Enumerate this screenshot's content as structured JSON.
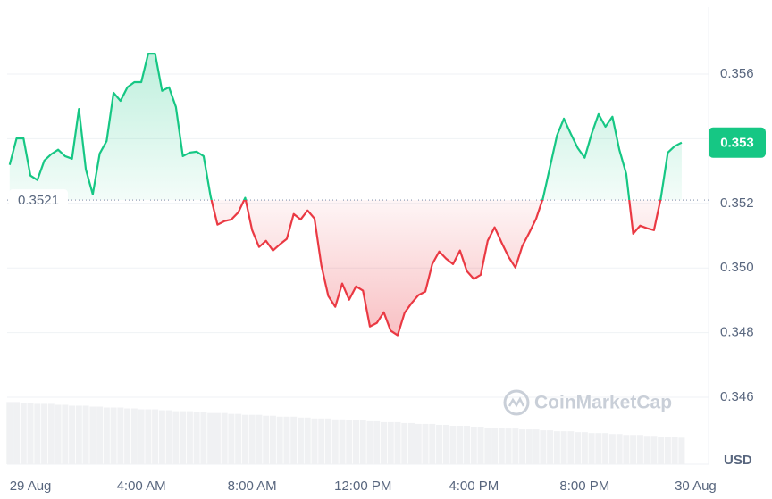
{
  "chart_data": {
    "type": "line",
    "x": [
      -0.75,
      -0.5,
      -0.25,
      0,
      0.25,
      0.5,
      0.75,
      1,
      1.25,
      1.5,
      1.75,
      2,
      2.25,
      2.5,
      2.75,
      3,
      3.25,
      3.5,
      3.75,
      4,
      4.25,
      4.5,
      4.75,
      5,
      5.25,
      5.5,
      5.75,
      6,
      6.25,
      6.5,
      6.75,
      7,
      7.25,
      7.5,
      7.75,
      8,
      8.25,
      8.5,
      8.75,
      9,
      9.25,
      9.5,
      9.75,
      10,
      10.25,
      10.5,
      10.75,
      11,
      11.25,
      11.5,
      11.75,
      12,
      12.25,
      12.5,
      12.75,
      13,
      13.25,
      13.5,
      13.75,
      14,
      14.25,
      14.5,
      14.75,
      15,
      15.25,
      15.5,
      15.75,
      16,
      16.25,
      16.5,
      16.75,
      17,
      17.25,
      17.5,
      17.75,
      18,
      18.25,
      18.5,
      18.75,
      19,
      19.25,
      19.5,
      19.75,
      20,
      20.25,
      20.5,
      20.75,
      21,
      21.25,
      21.5,
      21.75,
      22,
      22.25,
      22.5,
      22.75,
      23,
      23.25,
      23.5
    ],
    "series": [
      {
        "name": "price",
        "values": [
          0.35319,
          0.35401,
          0.35401,
          0.35286,
          0.35272,
          0.35332,
          0.35352,
          0.35366,
          0.35346,
          0.35338,
          0.35492,
          0.35305,
          0.35228,
          0.35354,
          0.35393,
          0.35542,
          0.35517,
          0.35559,
          0.35575,
          0.35575,
          0.35663,
          0.35663,
          0.35548,
          0.35559,
          0.35498,
          0.35346,
          0.35357,
          0.3536,
          0.35346,
          0.35222,
          0.35134,
          0.35145,
          0.3515,
          0.35172,
          0.35217,
          0.35117,
          0.35065,
          0.35084,
          0.35054,
          0.35073,
          0.3509,
          0.35167,
          0.3515,
          0.35178,
          0.35153,
          0.35007,
          0.34913,
          0.3488,
          0.34952,
          0.34902,
          0.34943,
          0.3493,
          0.34819,
          0.3483,
          0.34863,
          0.34806,
          0.34792,
          0.34861,
          0.34891,
          0.34916,
          0.34927,
          0.35012,
          0.35051,
          0.35029,
          0.35012,
          0.35054,
          0.3499,
          0.34966,
          0.34979,
          0.35084,
          0.35126,
          0.35079,
          0.35035,
          0.35001,
          0.35068,
          0.35109,
          0.35153,
          0.35217,
          0.35313,
          0.3541,
          0.35462,
          0.35415,
          0.35371,
          0.35341,
          0.35415,
          0.35476,
          0.35437,
          0.35468,
          0.35366,
          0.35291,
          0.35106,
          0.35131,
          0.35123,
          0.35117,
          0.35217,
          0.35357,
          0.35377,
          0.35388
        ]
      },
      {
        "name": "volume",
        "axis": "y2",
        "color": "#f0f1f3",
        "values": [
          68,
          68,
          67,
          67,
          66,
          66,
          66,
          65,
          65,
          64,
          64,
          64,
          63,
          63,
          62,
          62,
          62,
          61,
          61,
          60,
          60,
          60,
          59,
          59,
          58,
          58,
          58,
          57,
          57,
          56,
          56,
          56,
          55,
          55,
          54,
          54,
          54,
          53,
          53,
          52,
          52,
          52,
          51,
          51,
          50,
          50,
          50,
          49,
          49,
          48,
          48,
          48,
          47,
          47,
          46,
          46,
          46,
          45,
          45,
          44,
          44,
          44,
          43,
          43,
          42,
          42,
          42,
          41,
          41,
          40,
          40,
          40,
          39,
          39,
          38,
          38,
          38,
          37,
          37,
          36,
          36,
          36,
          35,
          35,
          34,
          34,
          34,
          33,
          33,
          32,
          32,
          32,
          31,
          31,
          30,
          30,
          30,
          29
        ]
      }
    ],
    "up_color": "#16c784",
    "down_color": "#ea3943",
    "baseline": 0.3521,
    "price_label": 0.353,
    "xlim": [
      -0.84,
      24.47
    ],
    "xticks": [
      {
        "value": 0,
        "label": "29 Aug"
      },
      {
        "value": 4,
        "label": "4:00 AM"
      },
      {
        "value": 8,
        "label": "8:00 AM"
      },
      {
        "value": 12,
        "label": "12:00 PM"
      },
      {
        "value": 16,
        "label": "4:00 PM"
      },
      {
        "value": 20,
        "label": "8:00 PM"
      },
      {
        "value": 24,
        "label": "30 Aug"
      }
    ],
    "ylim": [
      0.34393,
      0.35807
    ],
    "yticks": [
      0.346,
      0.348,
      {
        "value": 0.35,
        "label": "0.350"
      },
      0.352,
      0.354,
      0.356
    ],
    "y2lim": [
      0,
      500
    ],
    "grid": true,
    "currency": "USD",
    "watermark": "CoinMarketCap"
  }
}
